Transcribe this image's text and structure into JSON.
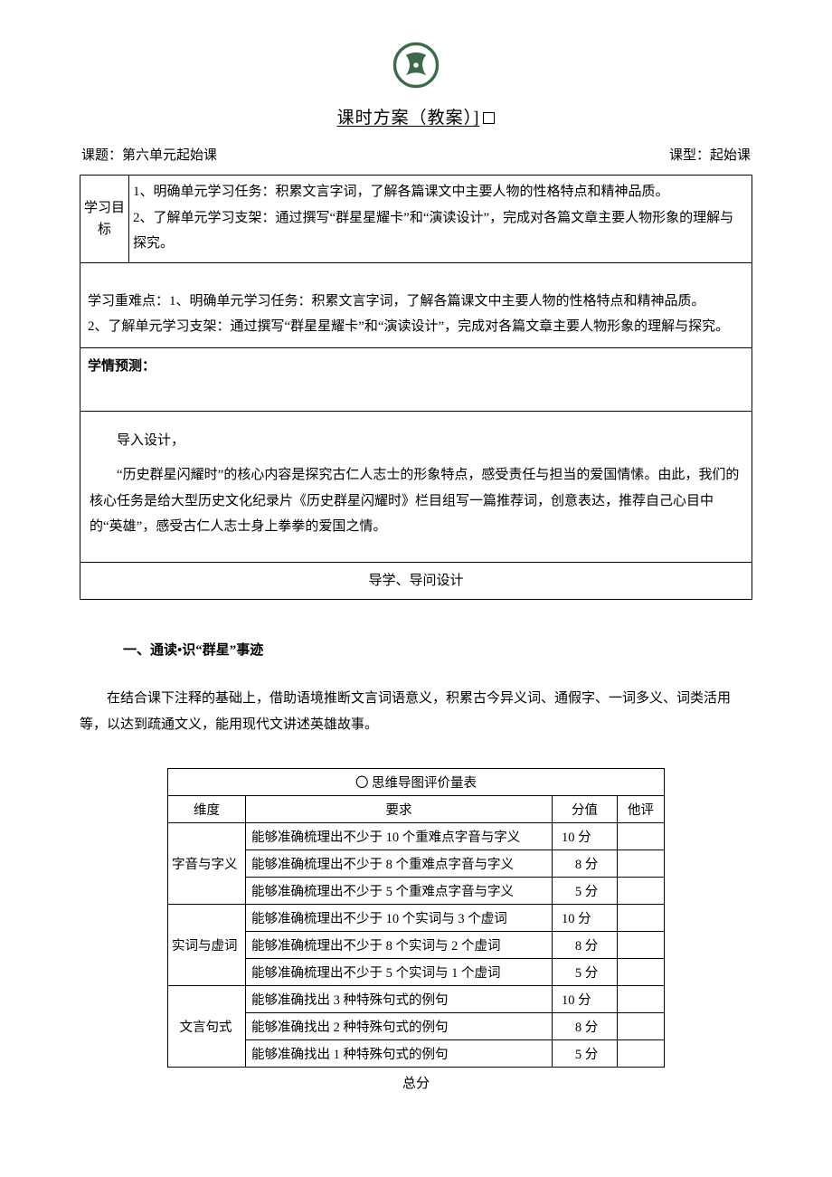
{
  "doc": {
    "title_main": "课时方案（教案）]",
    "topic_label": "课题：",
    "topic_value": "第六单元起始课",
    "type_label": "课型：",
    "type_value": "起始课"
  },
  "goals": {
    "label": "学习目标",
    "line1": "1、明确单元学习任务：积累文言字词，了解各篇课文中主要人物的性格特点和精神品质。",
    "line2": "2、了解单元学习支架：通过撰写“群星星耀卡”和“演读设计”，完成对各篇文章主要人物形象的理解与探究。"
  },
  "difficulty": {
    "line1": "学习重难点：1、明确单元学习任务：积累文言字词，了解各篇课文中主要人物的性格特点和精神品质。",
    "line2": "2、了解单元学习支架：通过撰写“群星星耀卡”和“演读设计”，完成对各篇文章主要人物形象的理解与探究。"
  },
  "predict_label": "学情预测：",
  "intro": {
    "lead_label": "导入设计，",
    "body": "“历史群星闪耀时”的核心内容是探究古仁人志士的形象特点，感受责任与担当的爱国情愫。由此，我们的核心任务是给大型历史文化纪录片《历史群星闪耀时》栏目组写一篇推荐词，创意表达，推荐自己心目中的“英雄”，感受古仁人志士身上拳拳的爱国之情。",
    "guide_title": "导学、导问设计"
  },
  "section1": {
    "heading": "一、通读•识“群星”事迹",
    "para": "在结合课下注释的基础上，借助语境推断文言词语意义，积累古今异义词、通假字、一词多义、词类活用等，以达到疏通文义，能用现代文讲述英雄故事。"
  },
  "rubric": {
    "title": "〇 思维导图评价量表",
    "headers": {
      "dim": "维度",
      "req": "要求",
      "score": "分值",
      "peer": "他评"
    },
    "groups": [
      {
        "dim": "字音与字义",
        "dim_align": "left",
        "rows": [
          {
            "req": "能够准确梳理出不少于 10 个重难点字音与字义",
            "score": "10 分"
          },
          {
            "req": "能够准确梳理出不少于 8 个重难点字音与字义",
            "score": "8 分"
          },
          {
            "req": "能够准确梳理出不少于 5 个重难点字音与字义",
            "score": "5 分"
          }
        ]
      },
      {
        "dim": "实词与虚词",
        "dim_align": "left",
        "rows": [
          {
            "req": "能够准确梳理出不少于 10 个实词与 3 个虚词",
            "score": "10 分"
          },
          {
            "req": "能够准确梳理出不少于 8 个实词与 2 个虚词",
            "score": "8 分"
          },
          {
            "req": "能够准确梳理出不少于 5 个实词与 1 个虚词",
            "score": "5 分"
          }
        ]
      },
      {
        "dim": "文言句式",
        "dim_align": "center",
        "rows": [
          {
            "req": "能够准确找出 3 种特殊句式的例句",
            "score": "10 分"
          },
          {
            "req": "能够准确找出 2 种特殊句式的例句",
            "score": "8 分"
          },
          {
            "req": "能够准确找出 1 种特殊句式的例句",
            "score": "5 分"
          }
        ]
      }
    ],
    "total_label": "总分"
  },
  "colors": {
    "logo_stroke": "#3b6b4a",
    "logo_fill": "#3b6b4a",
    "text": "#000000",
    "border": "#000000",
    "bg": "#ffffff"
  }
}
